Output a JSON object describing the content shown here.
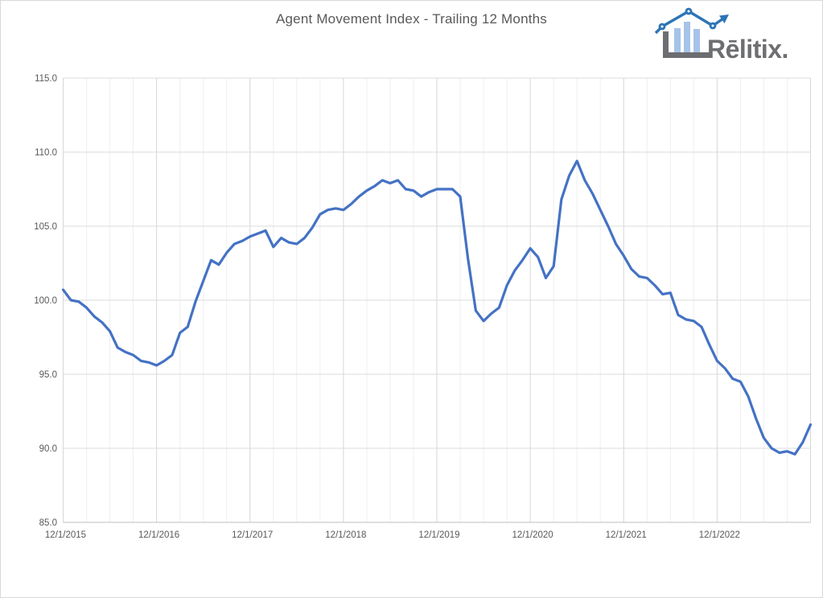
{
  "page": {
    "background_color": "#ffffff",
    "border_color": "#d9d9d9"
  },
  "header": {
    "title_color": "#595959"
  },
  "logo": {
    "wordmark": "Rēlitix.",
    "wordmark_color": "#6d6e71",
    "axis_color": "#6d6e71",
    "bar_color": "#a6c3e8",
    "line_color": "#2d74b6",
    "icon_parts": [
      "axis-l-shape",
      "bar-chart-bars",
      "trend-line-with-nodes",
      "up-right-arrow"
    ]
  },
  "chart_data": {
    "type": "line",
    "title": "Agent Movement Index - Trailing 12 Months",
    "series_name": "Agent Movement Index",
    "frequency": "monthly",
    "x_start": "12/1/2015",
    "x_end": "12/1/2023",
    "x_tick_labels": [
      "12/1/2015",
      "12/1/2016",
      "12/1/2017",
      "12/1/2018",
      "12/1/2019",
      "12/1/2020",
      "12/1/2021",
      "12/1/2022"
    ],
    "x_tick_month_step": 12,
    "minor_gridline_month_step": 3,
    "y_ticks": [
      85,
      90,
      95,
      100,
      105,
      110,
      115
    ],
    "y_tick_labels": [
      "85.0",
      "90.0",
      "95.0",
      "100.0",
      "105.0",
      "110.0",
      "115.0"
    ],
    "ylim": [
      85,
      115
    ],
    "gridlines": true,
    "legend": "none",
    "line_color": "#4472c4",
    "values": [
      100.7,
      100.0,
      99.9,
      99.5,
      98.9,
      98.5,
      97.9,
      96.8,
      96.5,
      96.3,
      95.9,
      95.8,
      95.6,
      95.9,
      96.3,
      97.8,
      98.2,
      99.9,
      101.3,
      102.7,
      102.4,
      103.2,
      103.8,
      104.0,
      104.3,
      104.5,
      104.7,
      103.6,
      104.2,
      103.9,
      103.8,
      104.2,
      104.9,
      105.8,
      106.1,
      106.2,
      106.1,
      106.5,
      107.0,
      107.4,
      107.7,
      108.1,
      107.9,
      108.1,
      107.5,
      107.4,
      107.0,
      107.3,
      107.5,
      107.5,
      107.5,
      107.0,
      102.8,
      99.3,
      98.6,
      99.1,
      99.5,
      101.0,
      102.0,
      102.7,
      103.5,
      102.9,
      101.5,
      102.3,
      106.8,
      108.4,
      109.4,
      108.1,
      107.2,
      106.1,
      105.0,
      103.8,
      103.0,
      102.1,
      101.6,
      101.5,
      101.0,
      100.4,
      100.5,
      99.0,
      98.7,
      98.6,
      98.2,
      97.0,
      95.9,
      95.4,
      94.7,
      94.5,
      93.5,
      92.0,
      90.7,
      90.0,
      89.7,
      89.8,
      89.6,
      90.4,
      91.6
    ]
  },
  "style": {
    "h_gridline_color": "#dbdbdb",
    "minor_v_gridline_color": "#efefef",
    "major_v_gridline_color": "#d6d6d6",
    "axis_line_color": "#bfbfbf",
    "tick_label_color": "#595959"
  }
}
